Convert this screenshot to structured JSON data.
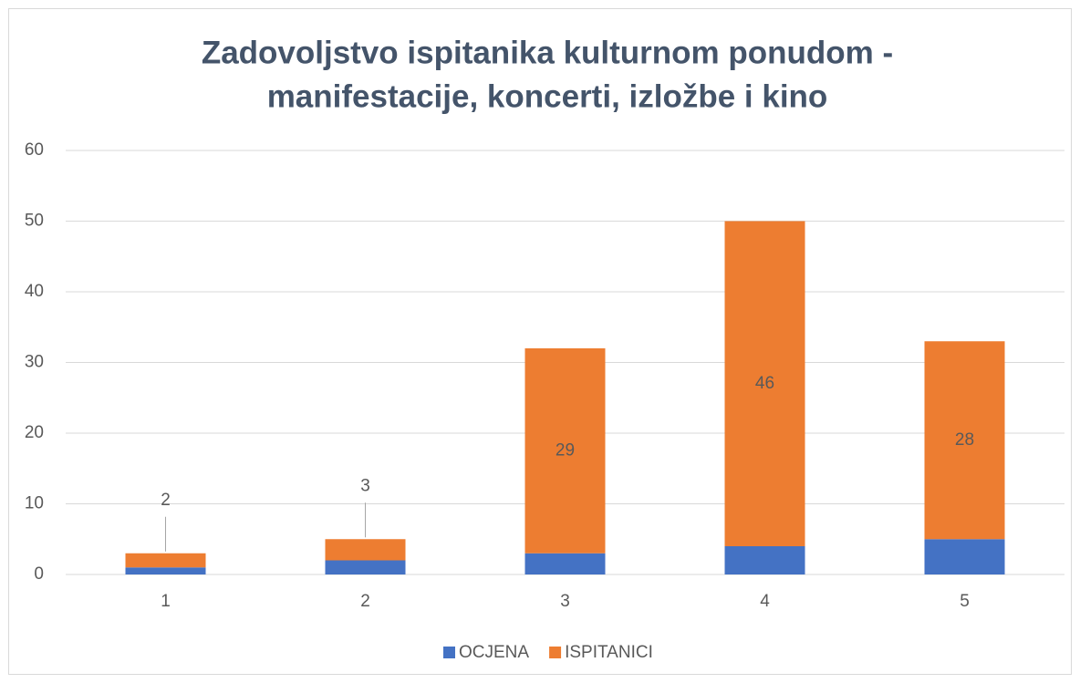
{
  "chart_data": {
    "type": "stacked_bar",
    "title": [
      "Zadovoljstvo ispitanika kulturnom ponudom -",
      "manifestacije, koncerti, izložbe i kino"
    ],
    "categories": [
      "1",
      "2",
      "3",
      "4",
      "5"
    ],
    "series": [
      {
        "name": "OCJENA",
        "color": "#4472c4",
        "values": [
          1,
          2,
          3,
          4,
          5
        ]
      },
      {
        "name": "ISPITANICI",
        "color": "#ed7d31",
        "values": [
          2,
          3,
          29,
          46,
          28
        ],
        "data_labels": true
      }
    ],
    "ylim": [
      0,
      60
    ],
    "yticks": [
      0,
      10,
      20,
      30,
      40,
      50,
      60
    ],
    "grid": true,
    "legend": "bottom"
  }
}
